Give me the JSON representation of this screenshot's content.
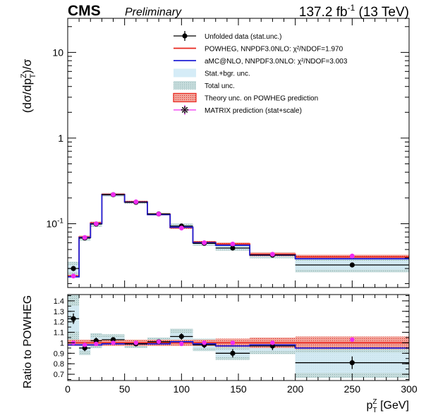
{
  "header": {
    "experiment": "CMS",
    "status": "Preliminary",
    "lumi_html": "137.2 fb",
    "lumi_sup": "-1",
    "energy": "(13 TeV)"
  },
  "chart_data": [
    {
      "type": "line",
      "panel": "main",
      "ylabel_parts": [
        "(dσ/dp",
        "Z",
        "T",
        ")/σ"
      ],
      "yscale": "log",
      "ylim": [
        0.018,
        25
      ],
      "xlim": [
        0,
        300
      ],
      "yticks": [
        {
          "v": 10,
          "label": "10"
        },
        {
          "v": 1,
          "label": "1"
        },
        {
          "v": 0.1,
          "label": "10",
          "sup": "-1"
        }
      ],
      "bins": [
        0,
        10,
        20,
        30,
        50,
        70,
        90,
        110,
        130,
        160,
        200,
        300
      ],
      "data": {
        "name": "Unfolded data (stat.unc.)",
        "values": [
          0.03,
          0.068,
          0.099,
          0.218,
          0.178,
          0.13,
          0.094,
          0.059,
          0.052,
          0.043,
          0.033
        ],
        "errors": [
          0.002,
          0.003,
          0.003,
          0.006,
          0.005,
          0.004,
          0.003,
          0.002,
          0.002,
          0.002,
          0.002
        ]
      },
      "powheg": {
        "name": "POWHEG, NNPDF3.0NLO: χ²/NDOF=1.970",
        "color": "#e8251c",
        "values": [
          0.0245,
          0.07,
          0.102,
          0.22,
          0.18,
          0.129,
          0.09,
          0.061,
          0.058,
          0.044,
          0.041
        ]
      },
      "amcnlo": {
        "name": "aMC@NLO, NNPDF3.0NLO: χ²/NDOF=3.003",
        "color": "#1f1fd6",
        "values": [
          0.024,
          0.069,
          0.1,
          0.218,
          0.179,
          0.128,
          0.091,
          0.06,
          0.056,
          0.043,
          0.039
        ]
      },
      "matrix": {
        "name": "MATRIX prediction (stat+scale)",
        "color": "#f02cf0",
        "values": [
          0.0245,
          0.069,
          0.1,
          0.219,
          0.18,
          0.13,
          0.089,
          0.06,
          0.058,
          0.044,
          0.042
        ]
      },
      "legend": [
        {
          "label": "Unfolded data (stat.unc.)",
          "kind": "data"
        },
        {
          "label": "POWHEG, NNPDF3.0NLO: χ²/NDOF=1.970",
          "kind": "red-line"
        },
        {
          "label": "aMC@NLO, NNPDF3.0NLO: χ²/NDOF=3.003",
          "kind": "blue-line"
        },
        {
          "label": "Stat.+bgr. unc.",
          "kind": "light-band"
        },
        {
          "label": "Total unc.",
          "kind": "total-band"
        },
        {
          "label": "Theory unc. on POWHEG prediction",
          "kind": "theory-band"
        },
        {
          "label": "MATRIX prediction (stat+scale)",
          "kind": "matrix"
        }
      ]
    },
    {
      "type": "line",
      "panel": "ratio",
      "ylabel": "Ratio to POWHEG",
      "xlabel_parts": [
        "p",
        "Z",
        "T",
        " [GeV]"
      ],
      "ylim": [
        0.64,
        1.46
      ],
      "xlim": [
        0,
        300
      ],
      "xticks": [
        0,
        50,
        100,
        150,
        200,
        250,
        300
      ],
      "yticks": [
        0.7,
        0.8,
        0.9,
        1,
        1.1,
        1.2,
        1.3,
        1.4
      ],
      "bins": [
        0,
        10,
        20,
        30,
        50,
        70,
        90,
        110,
        130,
        160,
        200,
        300
      ],
      "data": {
        "values": [
          1.23,
          0.95,
          1.02,
          1.03,
          0.99,
          1.01,
          1.06,
          0.98,
          0.9,
          0.97,
          0.81
        ],
        "errors": [
          0.05,
          0.03,
          0.03,
          0.02,
          0.02,
          0.02,
          0.03,
          0.03,
          0.04,
          0.04,
          0.06
        ]
      },
      "amcnlo_values": [
        0.98,
        0.98,
        0.98,
        0.99,
        0.99,
        0.99,
        1.01,
        0.99,
        0.97,
        0.98,
        0.95
      ],
      "matrix_values": [
        1.0,
        0.98,
        0.99,
        1.0,
        1.0,
        1.01,
        0.99,
        1.0,
        1.0,
        1.0,
        1.03
      ],
      "total_unc": [
        0.2,
        0.07,
        0.07,
        0.05,
        0.04,
        0.04,
        0.07,
        0.06,
        0.07,
        0.08,
        0.18
      ],
      "stat_unc": [
        0.1,
        0.03,
        0.03,
        0.02,
        0.02,
        0.02,
        0.03,
        0.03,
        0.04,
        0.05,
        0.12
      ],
      "theory_unc": [
        0.03,
        0.03,
        0.03,
        0.03,
        0.03,
        0.03,
        0.03,
        0.03,
        0.04,
        0.05,
        0.06
      ]
    }
  ]
}
